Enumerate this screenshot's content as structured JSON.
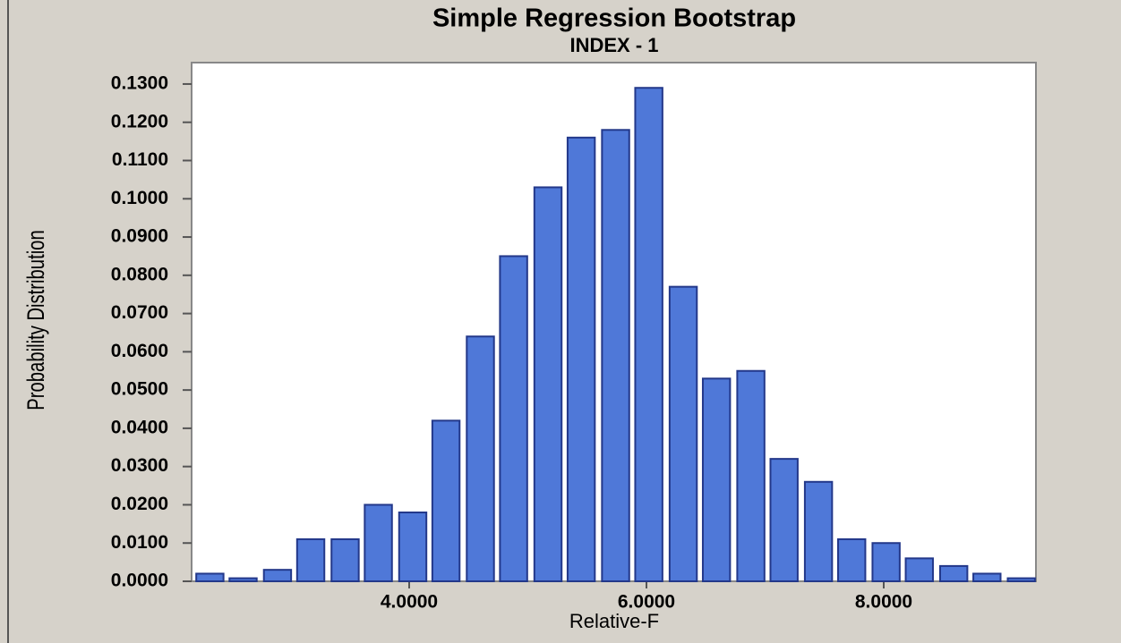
{
  "chart_data": {
    "type": "bar",
    "title": "Simple Regression Bootstrap",
    "subtitle": "INDEX - 1",
    "x_label": "Relative-F",
    "y_label": "Probability Distribution",
    "x": [
      2.32,
      2.6,
      2.89,
      3.17,
      3.46,
      3.74,
      4.03,
      4.31,
      4.6,
      4.88,
      5.17,
      5.45,
      5.74,
      6.02,
      6.31,
      6.59,
      6.88,
      7.16,
      7.45,
      7.73,
      8.02,
      8.3,
      8.59,
      8.87,
      9.16
    ],
    "values": [
      0.002,
      0.0008,
      0.003,
      0.011,
      0.011,
      0.02,
      0.018,
      0.042,
      0.064,
      0.085,
      0.103,
      0.116,
      0.118,
      0.129,
      0.077,
      0.053,
      0.055,
      0.032,
      0.026,
      0.011,
      0.01,
      0.006,
      0.004,
      0.002,
      0.0008
    ],
    "color": "#4f78d8",
    "xlim": [
      2.166,
      9.283
    ],
    "xticks": [
      {
        "value": 4,
        "label": "4.0000"
      },
      {
        "value": 6,
        "label": "6.0000"
      },
      {
        "value": 8,
        "label": "8.0000"
      }
    ],
    "ylim": [
      0,
      0.1356
    ],
    "yticks": [
      {
        "value": 0,
        "label": "0.0000"
      },
      {
        "value": 0.01,
        "label": "0.0100"
      },
      {
        "value": 0.02,
        "label": "0.0200"
      },
      {
        "value": 0.03,
        "label": "0.0300"
      },
      {
        "value": 0.04,
        "label": "0.0400"
      },
      {
        "value": 0.05,
        "label": "0.0500"
      },
      {
        "value": 0.06,
        "label": "0.0600"
      },
      {
        "value": 0.07,
        "label": "0.0700"
      },
      {
        "value": 0.08,
        "label": "0.0800"
      },
      {
        "value": 0.09,
        "label": "0.0900"
      },
      {
        "value": 0.1,
        "label": "0.1000"
      },
      {
        "value": 0.11,
        "label": "0.1100"
      },
      {
        "value": 0.12,
        "label": "0.1200"
      },
      {
        "value": 0.13,
        "label": "0.1300"
      }
    ]
  }
}
